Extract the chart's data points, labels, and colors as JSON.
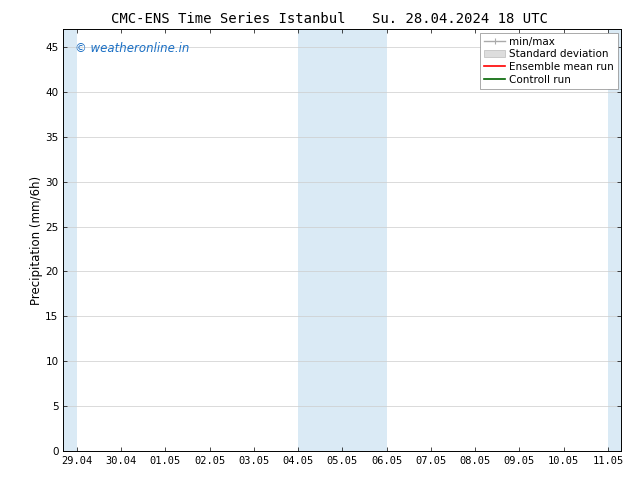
{
  "title_left": "CMC-ENS Time Series Istanbul",
  "title_right": "Su. 28.04.2024 18 UTC",
  "ylabel": "Precipitation (mm/6h)",
  "watermark": "© weatheronline.in",
  "x_tick_labels": [
    "29.04",
    "30.04",
    "01.05",
    "02.05",
    "03.05",
    "04.05",
    "05.05",
    "06.05",
    "07.05",
    "08.05",
    "09.05",
    "10.05",
    "11.05"
  ],
  "x_tick_values": [
    0,
    1,
    2,
    3,
    4,
    5,
    6,
    7,
    8,
    9,
    10,
    11,
    12
  ],
  "ylim": [
    0,
    47
  ],
  "xlim": [
    -0.3,
    12.3
  ],
  "yticks": [
    0,
    5,
    10,
    15,
    20,
    25,
    30,
    35,
    40,
    45
  ],
  "shaded_regions": [
    {
      "x_start": 5.0,
      "x_end": 6.0,
      "color": "#daeaf5"
    },
    {
      "x_start": 6.0,
      "x_end": 7.0,
      "color": "#daeaf5"
    },
    {
      "x_start": 12.0,
      "x_end": 12.35,
      "color": "#daeaf5"
    }
  ],
  "left_shade_region": {
    "x_start": -0.35,
    "x_end": 0.0,
    "color": "#daeaf5"
  },
  "bg_color": "#ffffff",
  "plot_bg_color": "#ffffff",
  "grid_color": "#cccccc",
  "title_fontsize": 10,
  "tick_fontsize": 7.5,
  "ylabel_fontsize": 8.5,
  "watermark_color": "#1a6fc4",
  "watermark_fontsize": 8.5,
  "legend_fontsize": 7.5,
  "minmax_color": "#aaaaaa",
  "std_color": "#cccccc",
  "ensemble_color": "#ff0000",
  "control_color": "#006400"
}
